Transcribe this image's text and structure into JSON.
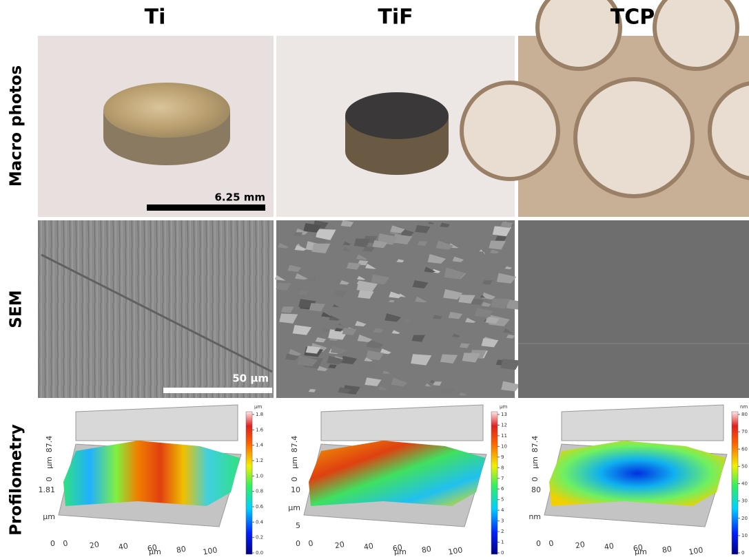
{
  "columns": [
    "Ti",
    "TiF",
    "TCP"
  ],
  "rows": [
    "Macro photos",
    "SEM",
    "Profilometry"
  ],
  "scale_bars": {
    "macro": "6.25 mm",
    "sem": "50 µm"
  },
  "profiles": [
    {
      "colorbar_unit": "µm",
      "colorbar_ticks": [
        "0.0",
        "0.2",
        "0.4",
        "0.6",
        "0.8",
        "1.0",
        "1.2",
        "1.4",
        "1.6",
        "1.8"
      ],
      "y_labels": [
        "87.4",
        "µm",
        "0"
      ],
      "z_labels": [
        "1.81",
        "µm",
        "0"
      ],
      "x_ticks": [
        "0",
        "20",
        "40",
        "60",
        "80",
        "100"
      ],
      "x_unit": "µm"
    },
    {
      "colorbar_unit": "µm",
      "colorbar_ticks": [
        "0",
        "1",
        "2",
        "3",
        "4",
        "5",
        "6",
        "7",
        "8",
        "9",
        "10",
        "11",
        "12",
        "13"
      ],
      "y_labels": [
        "87.4",
        "µm",
        "0"
      ],
      "z_labels": [
        "10",
        "µm",
        "5",
        "0"
      ],
      "x_ticks": [
        "0",
        "20",
        "40",
        "60",
        "80",
        "100"
      ],
      "x_unit": "µm"
    },
    {
      "colorbar_unit": "nm",
      "colorbar_ticks": [
        "0",
        "10",
        "20",
        "30",
        "40",
        "50",
        "60",
        "70",
        "80"
      ],
      "y_labels": [
        "87.4",
        "µm",
        "0"
      ],
      "z_labels": [
        "80",
        "nm",
        "0"
      ],
      "x_ticks": [
        "0",
        "20",
        "40",
        "60",
        "80",
        "100"
      ],
      "x_unit": "µm"
    }
  ]
}
